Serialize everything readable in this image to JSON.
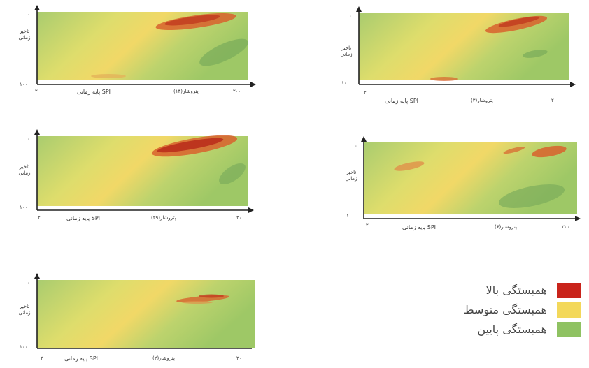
{
  "colors": {
    "high": "#c9241b",
    "medium": "#f3d85a",
    "low": "#8fc262"
  },
  "chart_data": [
    {
      "type": "heatmap",
      "series_label": "پتروشار(۱۳)",
      "xlabel": "پایه زمانی SPI",
      "ylabel": [
        "تاخیر",
        "زمانی"
      ],
      "x_ticks": [
        "۲",
        "۲۰۰"
      ],
      "y_ticks": [
        "۰",
        "۱۰۰"
      ]
    },
    {
      "type": "heatmap",
      "series_label": "پتروشار(۳)",
      "xlabel": "پایه زمانی SPI",
      "ylabel": [
        "تاخیر",
        "زمانی"
      ],
      "x_ticks": [
        "۲",
        "۲۰۰"
      ],
      "y_ticks": [
        "۰",
        "۱۰۰"
      ]
    },
    {
      "type": "heatmap",
      "series_label": "پتروشار(۲۹)",
      "xlabel": "پایه زمانی SPI",
      "ylabel": [
        "تاخیر",
        "زمانی"
      ],
      "x_ticks": [
        "۲",
        "۲۰۰"
      ],
      "y_ticks": [
        "۰",
        "۱۰۰"
      ]
    },
    {
      "type": "heatmap",
      "series_label": "پتروشار(۶)",
      "xlabel": "پایه زمانی SPI",
      "ylabel": [
        "تاخیر",
        "زمانی"
      ],
      "x_ticks": [
        "۲",
        "۲۰۰"
      ],
      "y_ticks": [
        "۰",
        "۱۰۰"
      ]
    },
    {
      "type": "heatmap",
      "series_label": "پتروشار(۲)",
      "xlabel": "پایه زمانی SPI",
      "ylabel": [
        "تاخیر",
        "زمانی"
      ],
      "x_ticks": [
        "۲",
        "۲۰۰"
      ],
      "y_ticks": [
        "۰",
        "۱۰۰"
      ]
    }
  ],
  "legend": [
    {
      "label": "همبستگی بالا",
      "color": "#c9241b"
    },
    {
      "label": "همبستگی متوسط",
      "color": "#f3d85a"
    },
    {
      "label": "همبستگی پایین",
      "color": "#8fc262"
    }
  ]
}
